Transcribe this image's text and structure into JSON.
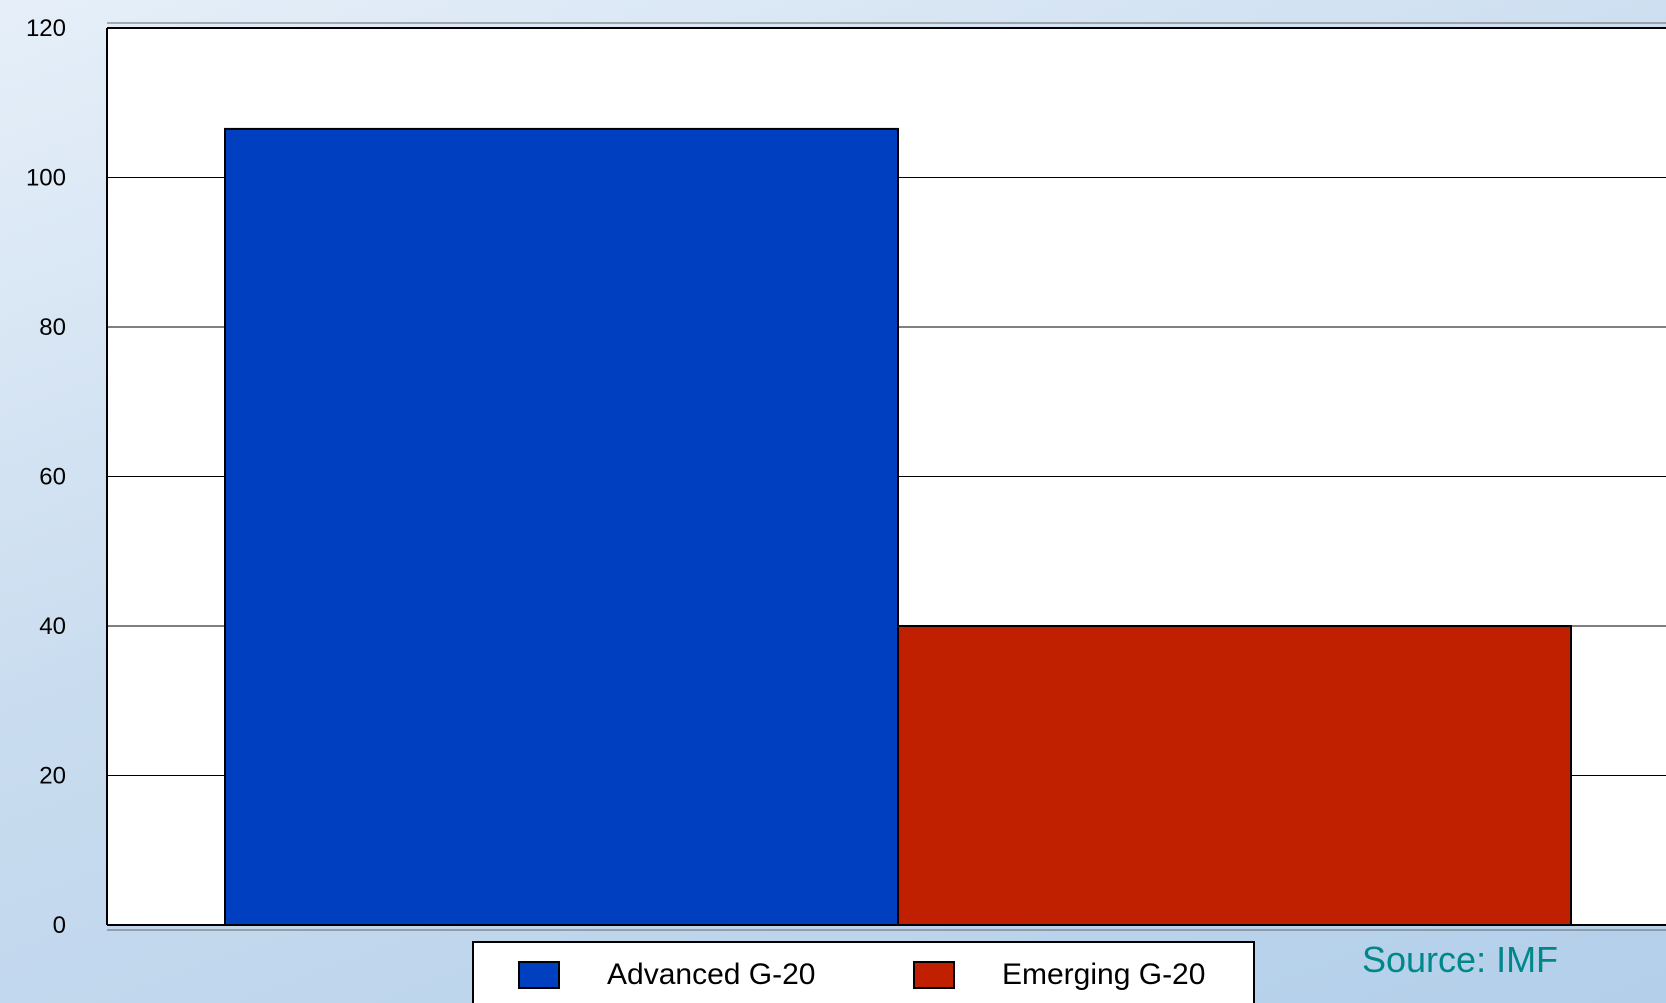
{
  "chart_data": {
    "type": "bar",
    "title": "",
    "xlabel": "",
    "ylabel": "",
    "ylim": [
      0,
      120
    ],
    "yticks": [
      0,
      20,
      40,
      60,
      80,
      100,
      120
    ],
    "grid": true,
    "legend_position": "bottom-center",
    "series": [
      {
        "name": "Advanced G-20",
        "value": 106.5,
        "color": "#0040c0"
      },
      {
        "name": "Emerging G-20",
        "value": 40,
        "color": "#c02000"
      }
    ],
    "source_text": "Source: IMF",
    "source_color": "#00878a"
  }
}
